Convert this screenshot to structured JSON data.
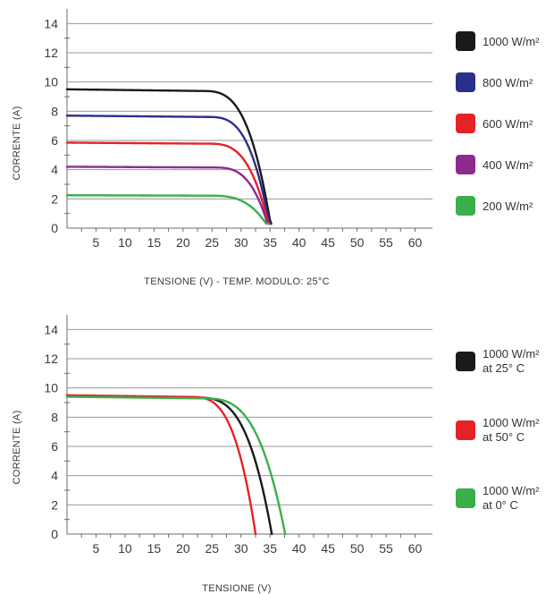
{
  "chart_data": [
    {
      "type": "line",
      "ylabel": "CORRENTE (A)",
      "xlabel": "TENSIONE (V) - TEMP. MODULO: 25°C",
      "xlim": [
        0,
        63
      ],
      "ylim": [
        0,
        15
      ],
      "x_ticks": [
        "5",
        "10",
        "15",
        "20",
        "25",
        "30",
        "35",
        "40",
        "45",
        "50",
        "55",
        "60"
      ],
      "y_ticks": [
        "0",
        "2",
        "4",
        "6",
        "8",
        "10",
        "12",
        "14"
      ],
      "grid": "horizontal",
      "legend_position": "right",
      "series": [
        {
          "name": "1000 W/m²",
          "color": "#1a1a1a",
          "isc": 9.5,
          "knee": 23,
          "voc": 35.2,
          "x": [
            0,
            23,
            27,
            30,
            32,
            33.5,
            34.5,
            35.2
          ],
          "y": [
            9.5,
            9.4,
            8.9,
            7.6,
            5.8,
            3.9,
            2.0,
            0.3
          ]
        },
        {
          "name": "800 W/m²",
          "color": "#2b2f8c",
          "isc": 7.7,
          "knee": 24,
          "voc": 35.0,
          "x": [
            0,
            24,
            28,
            31,
            33,
            34.2,
            35.0
          ],
          "y": [
            7.7,
            7.6,
            7.1,
            5.8,
            4.0,
            2.1,
            0.3
          ]
        },
        {
          "name": "600 W/m²",
          "color": "#e52227",
          "isc": 5.85,
          "knee": 24,
          "voc": 34.9,
          "x": [
            0,
            24,
            29,
            32,
            33.8,
            34.9
          ],
          "y": [
            5.85,
            5.75,
            5.3,
            3.9,
            2.0,
            0.3
          ]
        },
        {
          "name": "400 W/m²",
          "color": "#8e2a8f",
          "isc": 4.2,
          "knee": 25,
          "voc": 34.8,
          "x": [
            0,
            25,
            30,
            33,
            34.8
          ],
          "y": [
            4.2,
            4.15,
            3.7,
            2.3,
            0.3
          ]
        },
        {
          "name": "200 W/m²",
          "color": "#3aaf4a",
          "isc": 2.25,
          "knee": 24,
          "voc": 34.8,
          "x": [
            0,
            24,
            30,
            33,
            34.8
          ],
          "y": [
            2.25,
            2.2,
            1.9,
            1.1,
            0.3
          ]
        }
      ]
    },
    {
      "type": "line",
      "ylabel": "CORRENTE (A)",
      "xlabel": "TENSIONE (V)",
      "xlim": [
        0,
        63
      ],
      "ylim": [
        0,
        15
      ],
      "x_ticks": [
        "5",
        "10",
        "15",
        "20",
        "25",
        "30",
        "35",
        "40",
        "45",
        "50",
        "55",
        "60"
      ],
      "y_ticks": [
        "0",
        "2",
        "4",
        "6",
        "8",
        "10",
        "12",
        "14"
      ],
      "grid": "horizontal",
      "legend_position": "right",
      "series": [
        {
          "name": "1000 W/m² at 25° C",
          "color": "#1a1a1a",
          "isc": 9.45,
          "knee": 22,
          "voc": 35.3,
          "x": [
            0,
            22,
            27,
            30.5,
            33,
            34.5,
            35.3
          ],
          "y": [
            9.45,
            9.4,
            8.8,
            7.3,
            4.8,
            2.0,
            0
          ]
        },
        {
          "name": "1000 W/m² at 50° C",
          "color": "#e52227",
          "isc": 9.5,
          "knee": 21,
          "voc": 32.5,
          "x": [
            0,
            21,
            25.5,
            28.5,
            30.8,
            32.0,
            32.5
          ],
          "y": [
            9.5,
            9.4,
            8.6,
            6.8,
            4.2,
            1.8,
            0
          ]
        },
        {
          "name": "1000 W/m² at 0° C",
          "color": "#3aaf4a",
          "isc": 9.4,
          "knee": 23,
          "voc": 37.6,
          "x": [
            0,
            23,
            28.5,
            32.5,
            35.3,
            36.8,
            37.6
          ],
          "y": [
            9.4,
            9.4,
            9.0,
            7.6,
            5.0,
            2.2,
            0
          ]
        }
      ]
    }
  ]
}
